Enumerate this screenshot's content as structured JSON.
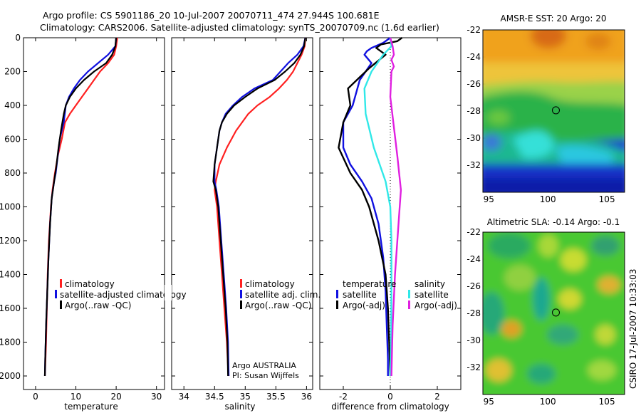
{
  "title": {
    "line1": "Argo profile: CS 5901186_20 10-Jul-2007 20070711_474 27.944S 100.681E",
    "line2": "Climatology: CARS2006. Satellite-adjusted climatology: synTS_20070709.nc (1.6d earlier)"
  },
  "colors": {
    "climatology": "#ff2020",
    "satellite": "#1010e0",
    "argo": "#000000",
    "sal_satellite": "#30e8e8",
    "sal_argo": "#e020e0"
  },
  "chart_data": [
    {
      "name": "temperature-panel",
      "type": "line",
      "xlabel": "temperature",
      "ylabel": "",
      "xlim": [
        -3,
        32
      ],
      "ylim": [
        2080,
        0
      ],
      "xticks": [
        "0",
        "10",
        "20",
        "30"
      ],
      "xtick_values": [
        0,
        10,
        20,
        30
      ],
      "yticks": [
        "0",
        "200",
        "400",
        "600",
        "800",
        "1000",
        "1200",
        "1400",
        "1600",
        "1800",
        "2000"
      ],
      "ytick_values": [
        0,
        200,
        400,
        600,
        800,
        1000,
        1200,
        1400,
        1600,
        1800,
        2000
      ],
      "legend": [
        "climatology",
        "satellite-adjusted climatology",
        "Argo(..raw -QC)"
      ],
      "series": [
        {
          "name": "climatology",
          "color": "#ff2020",
          "x": [
            20.3,
            20.0,
            19.5,
            18.0,
            16.0,
            14.5,
            13.0,
            11.5,
            10.0,
            8.5,
            7.3,
            6.5,
            5.5,
            4.8,
            4.2,
            3.8,
            3.3,
            3.0,
            2.8,
            2.6,
            2.4,
            2.3
          ],
          "y": [
            0,
            50,
            100,
            150,
            200,
            250,
            300,
            350,
            400,
            450,
            500,
            600,
            700,
            800,
            900,
            1000,
            1200,
            1400,
            1600,
            1800,
            1950,
            2000
          ]
        },
        {
          "name": "satellite-adjusted climatology",
          "color": "#1010e0",
          "x": [
            20.0,
            19.8,
            18.0,
            15.5,
            13.0,
            11.0,
            9.5,
            8.3,
            7.5,
            7.0,
            6.0,
            5.5,
            5.0,
            4.6,
            4.0,
            3.6,
            3.2,
            2.9,
            2.6,
            2.4,
            2.3
          ],
          "y": [
            0,
            50,
            100,
            150,
            200,
            250,
            300,
            350,
            400,
            500,
            600,
            700,
            800,
            850,
            950,
            1100,
            1300,
            1500,
            1700,
            1900,
            2000
          ]
        },
        {
          "name": "Argo(..raw -QC)",
          "color": "#000000",
          "x": [
            20.0,
            19.8,
            19.0,
            17.5,
            14.5,
            12.0,
            10.0,
            8.5,
            7.5,
            7.0,
            6.3,
            5.7,
            5.2,
            4.6,
            4.0,
            3.6,
            3.2,
            2.9,
            2.6,
            2.4,
            2.3
          ],
          "y": [
            0,
            50,
            100,
            150,
            200,
            250,
            300,
            350,
            400,
            450,
            550,
            650,
            750,
            850,
            950,
            1100,
            1300,
            1500,
            1700,
            1900,
            2000
          ]
        }
      ]
    },
    {
      "name": "salinity-panel",
      "type": "line",
      "xlabel": "salinity",
      "ylabel": "",
      "xlim": [
        33.8,
        36.1
      ],
      "ylim": [
        2080,
        0
      ],
      "xticks": [
        "34",
        "34.5",
        "35",
        "35.5",
        "36"
      ],
      "xtick_values": [
        34,
        34.5,
        35,
        35.5,
        36
      ],
      "legend": [
        "climatology",
        "satellite adj. clim.",
        "Argo(..raw -QC)"
      ],
      "annotation": [
        "Argo AUSTRALIA",
        "PI: Susan Wijffels"
      ],
      "series": [
        {
          "name": "climatology",
          "color": "#ff2020",
          "x": [
            35.98,
            35.97,
            35.92,
            35.85,
            35.78,
            35.68,
            35.55,
            35.4,
            35.2,
            35.05,
            34.85,
            34.7,
            34.58,
            34.52,
            34.5,
            34.54,
            34.58,
            34.62,
            34.66,
            34.7,
            34.72,
            34.73
          ],
          "y": [
            0,
            50,
            100,
            150,
            200,
            250,
            300,
            350,
            400,
            450,
            550,
            650,
            750,
            850,
            900,
            1000,
            1200,
            1400,
            1600,
            1800,
            1950,
            2000
          ]
        },
        {
          "name": "satellite adj. clim.",
          "color": "#1010e0",
          "x": [
            35.98,
            35.95,
            35.85,
            35.7,
            35.45,
            35.15,
            34.95,
            34.8,
            34.68,
            34.62,
            34.58,
            34.54,
            34.5,
            34.5,
            34.53,
            34.57,
            34.61,
            34.65,
            34.69,
            34.72,
            34.73
          ],
          "y": [
            0,
            50,
            100,
            150,
            250,
            300,
            350,
            400,
            450,
            500,
            550,
            650,
            750,
            850,
            900,
            1000,
            1200,
            1400,
            1600,
            1800,
            2000
          ]
        },
        {
          "name": "Argo(..raw -QC)",
          "color": "#000000",
          "x": [
            35.98,
            35.96,
            35.9,
            35.8,
            35.65,
            35.48,
            35.2,
            35.0,
            34.82,
            34.7,
            34.62,
            34.58,
            34.54,
            34.5,
            34.48,
            34.52,
            34.56,
            34.6,
            34.64,
            34.68,
            34.71,
            34.72
          ],
          "y": [
            0,
            50,
            100,
            150,
            200,
            250,
            300,
            350,
            400,
            450,
            500,
            550,
            650,
            750,
            850,
            900,
            1000,
            1200,
            1400,
            1600,
            1800,
            2000
          ]
        }
      ]
    },
    {
      "name": "difference-panel",
      "type": "line",
      "xlabel": "difference from climatology",
      "ylabel": "",
      "xlim": [
        -3,
        3
      ],
      "ylim": [
        2080,
        0
      ],
      "xticks": [
        "-2",
        "0",
        "2"
      ],
      "xtick_values": [
        -2,
        0,
        2
      ],
      "legend_headers": [
        "temperature",
        "salinity"
      ],
      "legend": [
        "satellite",
        "Argo(-adj)",
        "satellite",
        "Argo(-adj)"
      ],
      "series": [
        {
          "name": "temperature satellite",
          "color": "#1010e0",
          "x": [
            0.0,
            -0.3,
            -0.8,
            -1.0,
            -1.1,
            -0.8,
            -1.3,
            -1.6,
            -2.0,
            -2.0,
            -1.7,
            -1.2,
            -0.8,
            -0.5,
            -0.3,
            -0.2,
            -0.15,
            -0.1,
            -0.1
          ],
          "y": [
            0,
            30,
            60,
            80,
            100,
            150,
            250,
            400,
            500,
            650,
            750,
            850,
            950,
            1100,
            1300,
            1500,
            1700,
            1900,
            2000
          ]
        },
        {
          "name": "temperature Argo(-adj)",
          "color": "#000000",
          "x": [
            0.5,
            0.3,
            -0.4,
            -0.6,
            -0.2,
            -0.9,
            -1.8,
            -1.7,
            -2.0,
            -2.2,
            -1.7,
            -1.2,
            -0.9,
            -0.5,
            -0.2,
            -0.1,
            -0.05,
            0.0
          ],
          "y": [
            0,
            20,
            40,
            60,
            100,
            180,
            300,
            400,
            500,
            650,
            800,
            900,
            1000,
            1200,
            1400,
            1600,
            1800,
            2000
          ]
        },
        {
          "name": "salinity satellite",
          "color": "#30e8e8",
          "x": [
            0.0,
            0.05,
            -0.3,
            -0.8,
            -1.1,
            -1.05,
            -0.7,
            -0.2,
            0.0,
            0.05,
            0.05,
            0.03,
            0.0
          ],
          "y": [
            0,
            50,
            100,
            200,
            300,
            450,
            650,
            850,
            1000,
            1200,
            1500,
            1800,
            2000
          ]
        },
        {
          "name": "salinity Argo(-adj)",
          "color": "#e020e0",
          "x": [
            0.0,
            0.1,
            0.15,
            0.05,
            0.15,
            0.05,
            0.0,
            0.3,
            0.45,
            0.4,
            0.3,
            0.2,
            0.1,
            0.05
          ],
          "y": [
            0,
            50,
            100,
            130,
            170,
            200,
            350,
            700,
            900,
            1000,
            1200,
            1400,
            1700,
            2000
          ]
        }
      ]
    },
    {
      "name": "sst-map",
      "type": "heatmap",
      "title": "AMSR-E SST: 20 Argo: 20",
      "xticks": [
        "95",
        "100",
        "105"
      ],
      "xtick_values": [
        95,
        100,
        105
      ],
      "yticks": [
        "-22",
        "-24",
        "-26",
        "-28",
        "-30",
        "-32"
      ],
      "ytick_values": [
        -22,
        -24,
        -26,
        -28,
        -30,
        -32
      ],
      "xlim": [
        94.5,
        106.5
      ],
      "ylim": [
        -34,
        -22
      ],
      "marker": {
        "lon": 100.681,
        "lat": -27.944
      }
    },
    {
      "name": "sla-map",
      "type": "heatmap",
      "title": "Altimetric SLA: -0.14 Argo: -0.1",
      "xticks": [
        "95",
        "100",
        "105"
      ],
      "xtick_values": [
        95,
        100,
        105
      ],
      "yticks": [
        "-22",
        "-24",
        "-26",
        "-28",
        "-30",
        "-32"
      ],
      "ytick_values": [
        -22,
        -24,
        -26,
        -28,
        -30,
        -32
      ],
      "xlim": [
        94.5,
        106.5
      ],
      "ylim": [
        -34,
        -22
      ],
      "marker": {
        "lon": 100.681,
        "lat": -27.944
      }
    }
  ],
  "footer": "CSIRO 17-Jul-2007 10:33:03"
}
